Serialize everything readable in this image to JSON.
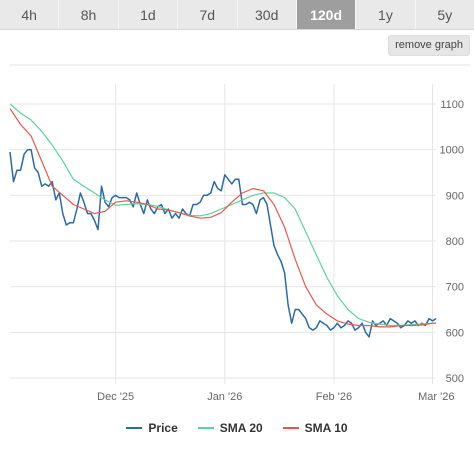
{
  "tabs": [
    {
      "label": "4h",
      "active": false
    },
    {
      "label": "8h",
      "active": false
    },
    {
      "label": "1d",
      "active": false
    },
    {
      "label": "7d",
      "active": false
    },
    {
      "label": "30d",
      "active": false
    },
    {
      "label": "120d",
      "active": true
    },
    {
      "label": "1y",
      "active": false
    },
    {
      "label": "5y",
      "active": false
    }
  ],
  "remove_button": "remove graph",
  "colors": {
    "price": "#2b6aa6",
    "sma20": "#5dd39b",
    "sma10": "#e8574a",
    "grid": "#e6e6e6"
  },
  "chart_data": {
    "type": "line",
    "y_ticks": [
      1100,
      1000,
      900,
      800,
      700,
      600,
      500
    ],
    "ylim": [
      500,
      1100
    ],
    "x_ticks": [
      {
        "label": "Dec '25",
        "day": 30
      },
      {
        "label": "Jan '26",
        "day": 61
      },
      {
        "label": "Feb '26",
        "day": 92
      },
      {
        "label": "Mar '26",
        "day": 120
      }
    ],
    "x_range": [
      0,
      121
    ],
    "grid": true,
    "legend_position": "bottom",
    "series": [
      {
        "name": "Price",
        "color": "#2b6aa6",
        "x": [
          0,
          1,
          2,
          3,
          4,
          5,
          6,
          7,
          8,
          9,
          10,
          11,
          12,
          13,
          14,
          15,
          16,
          17,
          18,
          19,
          20,
          21,
          22,
          23,
          24,
          25,
          26,
          27,
          28,
          29,
          30,
          31,
          32,
          33,
          34,
          35,
          36,
          37,
          38,
          39,
          40,
          41,
          42,
          43,
          44,
          45,
          46,
          47,
          48,
          49,
          50,
          51,
          52,
          53,
          54,
          55,
          56,
          57,
          58,
          59,
          60,
          61,
          62,
          63,
          64,
          65,
          66,
          67,
          68,
          69,
          70,
          71,
          72,
          73,
          74,
          75,
          76,
          77,
          78,
          79,
          80,
          81,
          82,
          83,
          84,
          85,
          86,
          87,
          88,
          89,
          90,
          91,
          92,
          93,
          94,
          95,
          96,
          97,
          98,
          99,
          100,
          101,
          102,
          103,
          104,
          105,
          106,
          107,
          108,
          109,
          110,
          111,
          112,
          113,
          114,
          115,
          116,
          117,
          118,
          119,
          120,
          121
        ],
        "y": [
          995,
          930,
          955,
          955,
          990,
          1000,
          1000,
          960,
          950,
          920,
          925,
          920,
          930,
          890,
          905,
          860,
          835,
          840,
          840,
          870,
          905,
          885,
          860,
          860,
          845,
          825,
          920,
          885,
          875,
          895,
          900,
          895,
          895,
          895,
          890,
          875,
          905,
          880,
          860,
          890,
          870,
          860,
          875,
          880,
          860,
          870,
          850,
          860,
          850,
          870,
          860,
          855,
          880,
          880,
          885,
          900,
          900,
          905,
          930,
          915,
          910,
          945,
          935,
          925,
          935,
          935,
          880,
          880,
          885,
          880,
          860,
          890,
          895,
          880,
          835,
          790,
          770,
          755,
          730,
          660,
          620,
          650,
          650,
          640,
          630,
          610,
          605,
          610,
          625,
          620,
          615,
          605,
          610,
          620,
          610,
          615,
          625,
          620,
          605,
          610,
          620,
          600,
          590,
          625,
          615,
          620,
          625,
          615,
          630,
          625,
          620,
          610,
          615,
          625,
          620,
          625,
          615,
          620,
          615,
          630,
          625,
          630
        ],
        "note": "x is days from start of window; Dec '25 at day ~30, Jan '26 ~61, Feb '26 ~92, Mar '26 ~120"
      },
      {
        "name": "SMA 20",
        "color": "#5dd39b",
        "x": [
          0,
          3,
          6,
          9,
          12,
          15,
          18,
          21,
          24,
          27,
          30,
          33,
          36,
          39,
          42,
          45,
          48,
          51,
          54,
          57,
          60,
          63,
          66,
          69,
          72,
          75,
          78,
          81,
          84,
          87,
          90,
          93,
          96,
          99,
          102,
          105,
          108,
          111,
          114,
          117,
          120,
          121
        ],
        "y": [
          1100,
          1080,
          1065,
          1040,
          1010,
          975,
          935,
          920,
          905,
          890,
          878,
          880,
          882,
          880,
          876,
          868,
          862,
          856,
          855,
          860,
          870,
          880,
          890,
          900,
          905,
          905,
          895,
          870,
          820,
          770,
          720,
          680,
          650,
          630,
          622,
          618,
          615,
          615,
          617,
          618,
          620,
          620
        ]
      },
      {
        "name": "SMA 10",
        "color": "#e8574a",
        "x": [
          0,
          3,
          6,
          9,
          12,
          15,
          18,
          21,
          24,
          27,
          30,
          33,
          36,
          39,
          42,
          45,
          48,
          51,
          54,
          57,
          60,
          63,
          66,
          69,
          72,
          75,
          78,
          81,
          84,
          87,
          90,
          93,
          96,
          99,
          102,
          105,
          108,
          111,
          114,
          117,
          120,
          121
        ],
        "y": [
          1090,
          1055,
          1030,
          975,
          920,
          900,
          880,
          870,
          860,
          865,
          885,
          888,
          885,
          880,
          870,
          868,
          862,
          855,
          850,
          852,
          862,
          885,
          905,
          915,
          910,
          880,
          830,
          760,
          700,
          660,
          640,
          625,
          618,
          615,
          615,
          612,
          612,
          615,
          615,
          616,
          620,
          620
        ]
      }
    ]
  },
  "legend": [
    {
      "label": "Price",
      "color": "#2b6aa6"
    },
    {
      "label": "SMA 20",
      "color": "#5dd39b"
    },
    {
      "label": "SMA 10",
      "color": "#e8574a"
    }
  ]
}
